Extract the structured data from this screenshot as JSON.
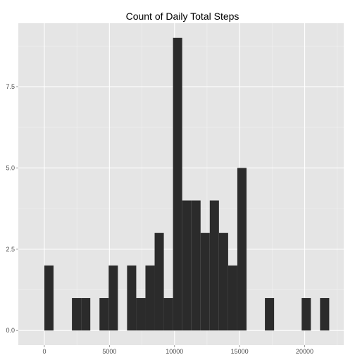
{
  "chart_data": {
    "type": "bar",
    "title": "Count of Daily Total Steps",
    "xlabel": "",
    "ylabel": "",
    "xlim": [
      -2000,
      23000
    ],
    "ylim": [
      -0.45,
      9.45
    ],
    "x_ticks": [
      0,
      5000,
      10000,
      15000,
      20000
    ],
    "y_ticks": [
      0,
      2.5,
      5,
      7.5
    ],
    "y_tick_labels": [
      "0.0",
      "2.5",
      "5.0",
      "7.5"
    ],
    "bin_width": 706,
    "bins": [
      {
        "start": 0,
        "count": 2
      },
      {
        "start": 706,
        "count": 0
      },
      {
        "start": 1412,
        "count": 0
      },
      {
        "start": 2118,
        "count": 1
      },
      {
        "start": 2824,
        "count": 1
      },
      {
        "start": 3530,
        "count": 0
      },
      {
        "start": 4236,
        "count": 1
      },
      {
        "start": 4942,
        "count": 2
      },
      {
        "start": 5648,
        "count": 0
      },
      {
        "start": 6354,
        "count": 2
      },
      {
        "start": 7060,
        "count": 1
      },
      {
        "start": 7766,
        "count": 2
      },
      {
        "start": 8472,
        "count": 3
      },
      {
        "start": 9178,
        "count": 1
      },
      {
        "start": 9884,
        "count": 9
      },
      {
        "start": 10590,
        "count": 4
      },
      {
        "start": 11296,
        "count": 4
      },
      {
        "start": 12002,
        "count": 3
      },
      {
        "start": 12708,
        "count": 4
      },
      {
        "start": 13414,
        "count": 3
      },
      {
        "start": 14120,
        "count": 2
      },
      {
        "start": 14826,
        "count": 5
      },
      {
        "start": 15532,
        "count": 0
      },
      {
        "start": 16238,
        "count": 0
      },
      {
        "start": 16944,
        "count": 1
      },
      {
        "start": 17650,
        "count": 0
      },
      {
        "start": 18356,
        "count": 0
      },
      {
        "start": 19062,
        "count": 0
      },
      {
        "start": 19768,
        "count": 1
      },
      {
        "start": 20474,
        "count": 0
      },
      {
        "start": 21180,
        "count": 1
      }
    ],
    "grid": true,
    "legend": "none",
    "colors": {
      "panel_background": "#e5e5e5",
      "grid_major": "#ffffff",
      "grid_minor": "#f2f2f2",
      "bar_fill": "#2b2b2b",
      "tick": "#7f7f7f"
    }
  }
}
